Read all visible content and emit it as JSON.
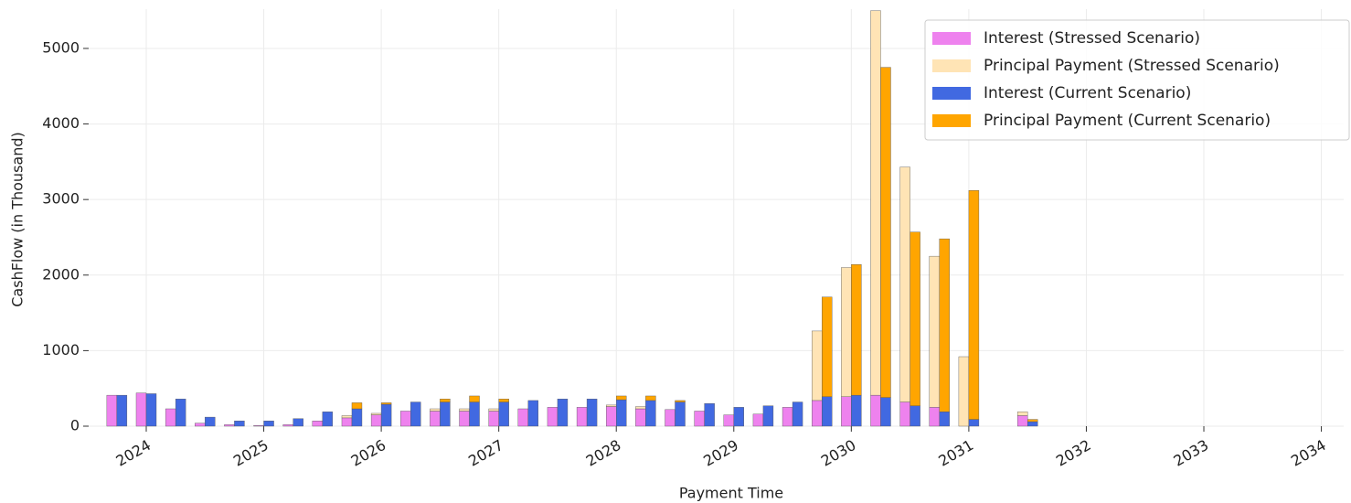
{
  "chart_data": {
    "type": "bar",
    "xlabel": "Payment Time",
    "ylabel": "CashFlow (in Thousand)",
    "x": [
      2023.75,
      2024.0,
      2024.25,
      2024.5,
      2024.75,
      2025.0,
      2025.25,
      2025.5,
      2025.75,
      2026.0,
      2026.25,
      2026.5,
      2026.75,
      2027.0,
      2027.25,
      2027.5,
      2027.75,
      2028.0,
      2028.25,
      2028.5,
      2028.75,
      2029.0,
      2029.25,
      2029.5,
      2029.75,
      2030.0,
      2030.25,
      2030.5,
      2030.75,
      2031.0,
      2031.5
    ],
    "series": [
      {
        "name": "Interest (Stressed Scenario)",
        "color": "#ee82ee",
        "values": [
          410,
          440,
          230,
          40,
          20,
          10,
          20,
          70,
          110,
          150,
          200,
          200,
          200,
          200,
          230,
          250,
          250,
          260,
          230,
          220,
          200,
          150,
          160,
          250,
          340,
          390,
          410,
          320,
          250,
          0,
          140
        ]
      },
      {
        "name": "Principal Payment (Stressed Scenario)",
        "color": "#ffe4b5",
        "values": [
          0,
          0,
          0,
          0,
          0,
          0,
          0,
          0,
          30,
          20,
          0,
          30,
          30,
          30,
          0,
          0,
          0,
          20,
          30,
          0,
          0,
          0,
          0,
          0,
          920,
          1710,
          5090,
          3110,
          2000,
          920,
          50
        ]
      },
      {
        "name": "Interest (Current Scenario)",
        "color": "#4169e1",
        "values": [
          410,
          430,
          360,
          120,
          70,
          70,
          100,
          190,
          230,
          290,
          320,
          320,
          320,
          320,
          340,
          360,
          360,
          350,
          340,
          320,
          300,
          250,
          270,
          320,
          390,
          410,
          380,
          270,
          190,
          90,
          60
        ]
      },
      {
        "name": "Principal Payment (Current Scenario)",
        "color": "#ffa500",
        "values": [
          0,
          0,
          0,
          0,
          0,
          0,
          0,
          0,
          80,
          20,
          0,
          40,
          80,
          40,
          0,
          0,
          0,
          50,
          60,
          20,
          0,
          0,
          0,
          0,
          1320,
          1730,
          4370,
          2300,
          2290,
          3030,
          30
        ]
      }
    ],
    "xlim": [
      2023.51,
      2034.19
    ],
    "xticks": [
      2024,
      2025,
      2026,
      2027,
      2028,
      2029,
      2030,
      2031,
      2032,
      2033,
      2034
    ],
    "ylim": [
      0,
      5520
    ],
    "yticks": [
      0,
      1000,
      2000,
      3000,
      4000,
      5000
    ],
    "grid": true,
    "legend": "upper right"
  }
}
